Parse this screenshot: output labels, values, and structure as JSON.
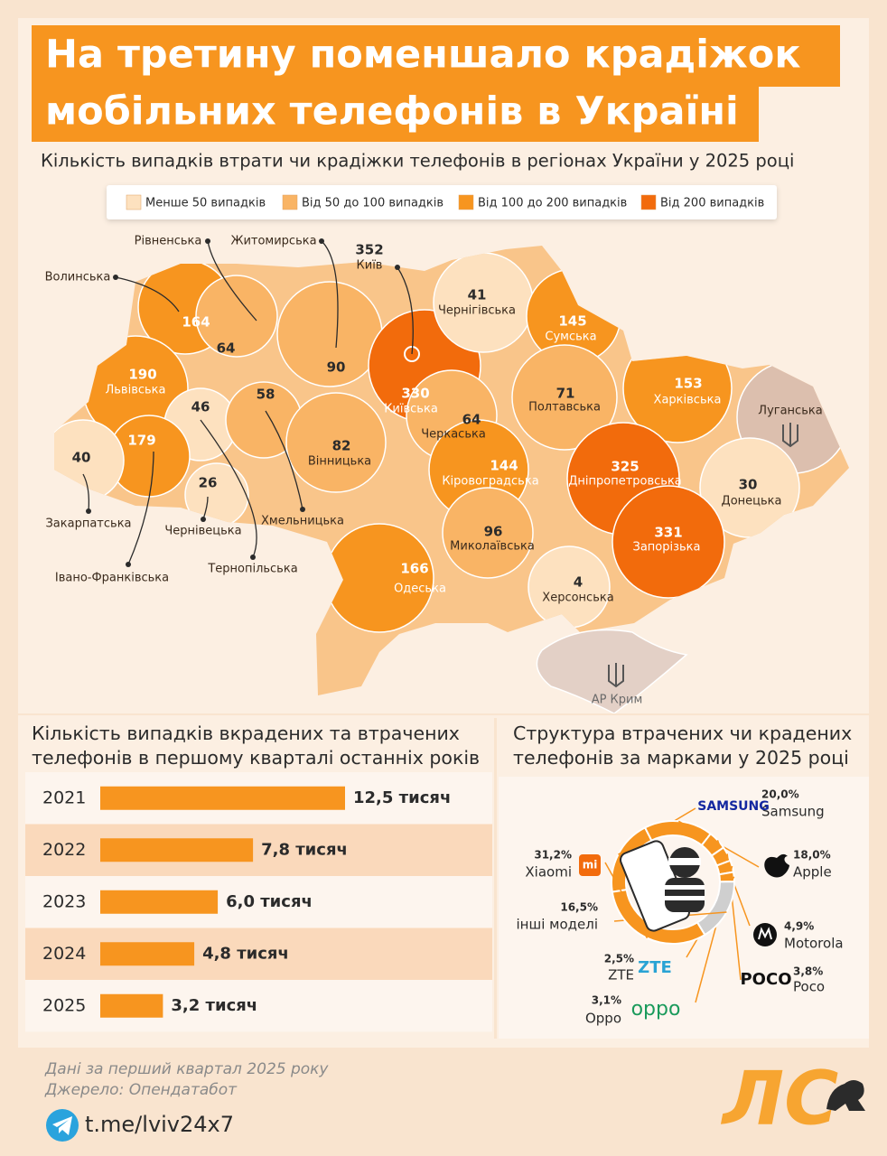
{
  "header": {
    "title_lines": [
      "На третину поменшало крадіжок",
      "мобільних телефонів в Україні"
    ],
    "subtitle": "Кількість випадків втрати чи крадіжки телефонів в регіонах України у 2025 році"
  },
  "map": {
    "legend": [
      {
        "label": "Менше 50 випадків",
        "color": "#fde1bf"
      },
      {
        "label": "Від 50 до 100 випадків",
        "color": "#f9b465"
      },
      {
        "label": "Від 100 до 200 випадків",
        "color": "#f7951f"
      },
      {
        "label": "Від 200 випадків",
        "color": "#f26b0c"
      }
    ],
    "regions": [
      {
        "name": "Волинська",
        "value": 164,
        "level": 2
      },
      {
        "name": "Рівненська",
        "value": 64,
        "level": 1
      },
      {
        "name": "Житомирська",
        "value": 90,
        "level": 1
      },
      {
        "name": "Київ",
        "value": 352,
        "level": 3
      },
      {
        "name": "Київська",
        "value": 330,
        "level": 3
      },
      {
        "name": "Чернігівська",
        "value": 41,
        "level": 0
      },
      {
        "name": "Сумська",
        "value": 145,
        "level": 2
      },
      {
        "name": "Львівська",
        "value": 190,
        "level": 2
      },
      {
        "name": "Тернопільська",
        "value": 46,
        "level": 0
      },
      {
        "name": "Хмельницька",
        "value": 58,
        "level": 1
      },
      {
        "name": "Вінницька",
        "value": 82,
        "level": 1
      },
      {
        "name": "Черкаська",
        "value": 64,
        "level": 1
      },
      {
        "name": "Полтавська",
        "value": 71,
        "level": 1
      },
      {
        "name": "Харківська",
        "value": 153,
        "level": 2
      },
      {
        "name": "Івано-Франківська",
        "value": 179,
        "level": 2
      },
      {
        "name": "Закарпатська",
        "value": 40,
        "level": 0
      },
      {
        "name": "Чернівецька",
        "value": 26,
        "level": 0
      },
      {
        "name": "Кіровоградська",
        "value": 144,
        "level": 2
      },
      {
        "name": "Дніпропетровська",
        "value": 325,
        "level": 3
      },
      {
        "name": "Донецька",
        "value": 30,
        "level": 0
      },
      {
        "name": "Одеська",
        "value": 166,
        "level": 2
      },
      {
        "name": "Миколаївська",
        "value": 96,
        "level": 1
      },
      {
        "name": "Запорізька",
        "value": 331,
        "level": 3
      },
      {
        "name": "Херсонська",
        "value": 4,
        "level": 0
      }
    ],
    "occupied": [
      "Луганська",
      "АР Крим"
    ]
  },
  "chart_data": [
    {
      "type": "bar",
      "title": [
        "Кількість випадків вкрадених та втрачених",
        "телефонів в першому кварталі останніх років"
      ],
      "categories": [
        "2021",
        "2022",
        "2023",
        "2024",
        "2025"
      ],
      "values": [
        12.5,
        7.8,
        6.0,
        4.8,
        3.2
      ],
      "value_labels": [
        "12,5 тисяч",
        "7,8 тисяч",
        "6,0 тисяч",
        "4,8 тисяч",
        "3,2 тисяч"
      ],
      "color": "#f7951f"
    },
    {
      "type": "pie",
      "title": [
        "Структура втрачених чи крадених",
        "телефонів за марками у 2025 році"
      ],
      "categories": [
        "Samsung",
        "Apple",
        "Motorola",
        "Poco",
        "Oppo",
        "ZTE",
        "інші моделі",
        "Xiaomi"
      ],
      "values": [
        20.0,
        18.0,
        4.9,
        3.8,
        3.1,
        2.5,
        16.5,
        31.2
      ],
      "value_labels": [
        "20,0%",
        "18,0%",
        "4,9%",
        "3,8%",
        "3,1%",
        "2,5%",
        "16,5%",
        "31,2%"
      ],
      "colors": [
        "#f7951f",
        "#f7951f",
        "#f7951f",
        "#f7951f",
        "#f7951f",
        "#f7951f",
        "#cfcfcf",
        "#f7951f"
      ],
      "logos": [
        "SAMSUNG",
        null,
        null,
        "POCO",
        "oppo",
        "ZTE",
        null,
        "mi"
      ]
    }
  ],
  "footer": {
    "notes": [
      "Дані за перший квартал 2025 року",
      "Джерело: Опендатабот"
    ],
    "link": "t.me/lviv24x7",
    "brand": "ЛС"
  }
}
